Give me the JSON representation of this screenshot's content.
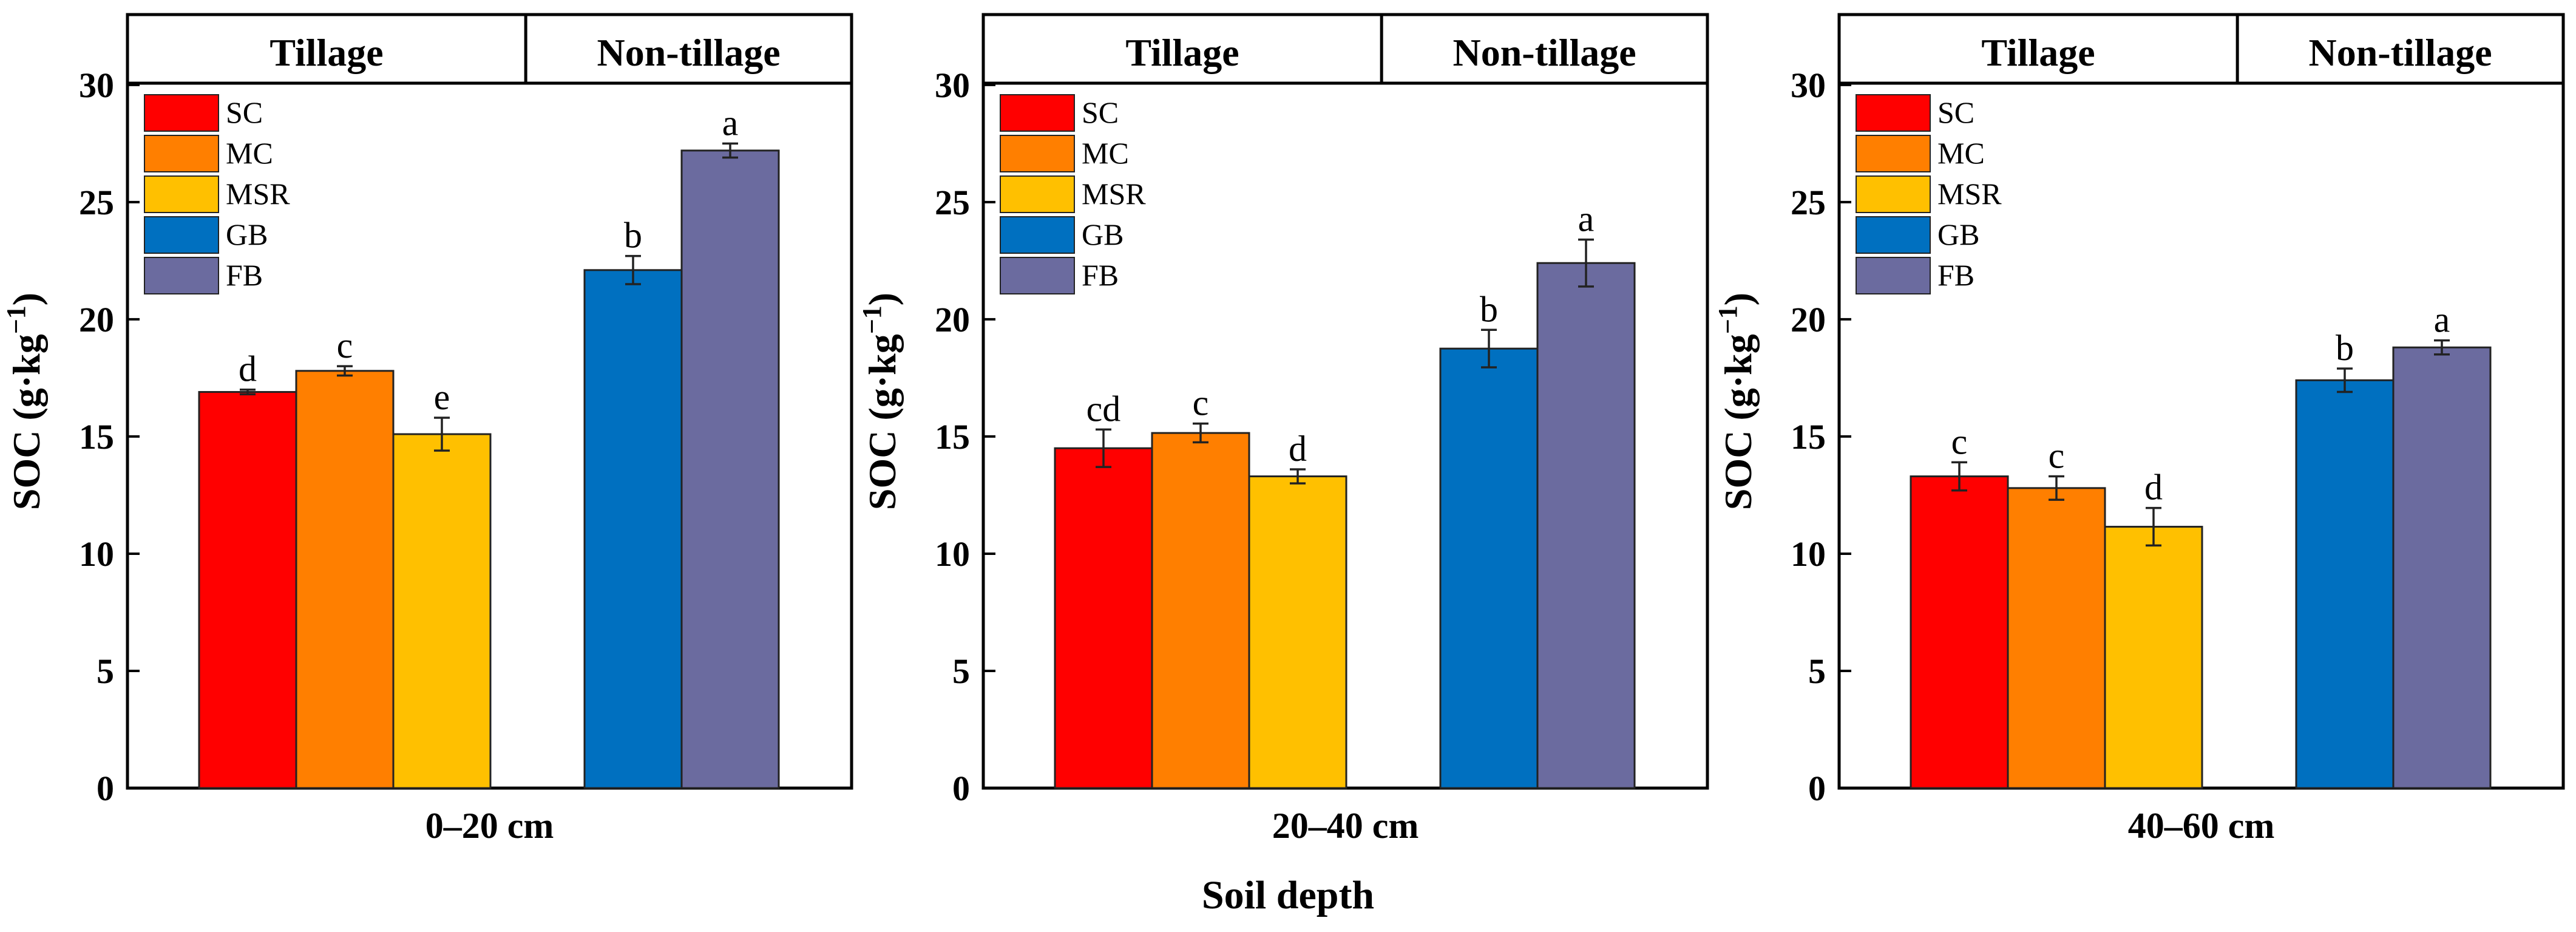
{
  "page": {
    "x_axis_title": "Soil depth"
  },
  "chart_data": [
    {
      "type": "bar",
      "panel_label": "0–20 cm",
      "ylabel": "SOC (g·kg",
      "ylabel_superscript": "−1",
      "ylabel_close": ")",
      "ylim": [
        0,
        33
      ],
      "yticks": [
        0,
        5,
        10,
        15,
        20,
        25,
        30
      ],
      "groups": [
        {
          "label": "Tillage",
          "series": [
            "SC",
            "MC",
            "MSR"
          ]
        },
        {
          "label": "Non-tillage",
          "series": [
            "GB",
            "FB"
          ]
        }
      ],
      "legend": {
        "position": "top-left",
        "entries": [
          "SC",
          "MC",
          "MSR",
          "GB",
          "FB"
        ]
      },
      "series": [
        {
          "name": "SC",
          "color": "#ff0000",
          "value": 16.9,
          "error": 0.1,
          "letter": "d"
        },
        {
          "name": "MC",
          "color": "#ff7f00",
          "value": 17.8,
          "error": 0.2,
          "letter": "c"
        },
        {
          "name": "MSR",
          "color": "#ffc000",
          "value": 15.1,
          "error": 0.7,
          "letter": "e"
        },
        {
          "name": "GB",
          "color": "#0070c0",
          "value": 22.1,
          "error": 0.6,
          "letter": "b"
        },
        {
          "name": "FB",
          "color": "#6b6b9f",
          "value": 27.2,
          "error": 0.3,
          "letter": "a"
        }
      ]
    },
    {
      "type": "bar",
      "panel_label": "20–40 cm",
      "ylabel": "SOC (g·kg",
      "ylabel_superscript": "−1",
      "ylabel_close": ")",
      "ylim": [
        0,
        33
      ],
      "yticks": [
        0,
        5,
        10,
        15,
        20,
        25,
        30
      ],
      "groups": [
        {
          "label": "Tillage",
          "series": [
            "SC",
            "MC",
            "MSR"
          ]
        },
        {
          "label": "Non-tillage",
          "series": [
            "GB",
            "FB"
          ]
        }
      ],
      "legend": {
        "position": "top-left",
        "entries": [
          "SC",
          "MC",
          "MSR",
          "GB",
          "FB"
        ]
      },
      "series": [
        {
          "name": "SC",
          "color": "#ff0000",
          "value": 14.5,
          "error": 0.8,
          "letter": "cd"
        },
        {
          "name": "MC",
          "color": "#ff7f00",
          "value": 15.15,
          "error": 0.4,
          "letter": "c"
        },
        {
          "name": "MSR",
          "color": "#ffc000",
          "value": 13.3,
          "error": 0.3,
          "letter": "d"
        },
        {
          "name": "GB",
          "color": "#0070c0",
          "value": 18.75,
          "error": 0.8,
          "letter": "b"
        },
        {
          "name": "FB",
          "color": "#6b6b9f",
          "value": 22.4,
          "error": 1.0,
          "letter": "a"
        }
      ]
    },
    {
      "type": "bar",
      "panel_label": "40–60 cm",
      "ylabel": "SOC (g·kg",
      "ylabel_superscript": "−1",
      "ylabel_close": ")",
      "ylim": [
        0,
        33
      ],
      "yticks": [
        0,
        5,
        10,
        15,
        20,
        25,
        30
      ],
      "groups": [
        {
          "label": "Tillage",
          "series": [
            "SC",
            "MC",
            "MSR"
          ]
        },
        {
          "label": "Non-tillage",
          "series": [
            "GB",
            "FB"
          ]
        }
      ],
      "legend": {
        "position": "top-left",
        "entries": [
          "SC",
          "MC",
          "MSR",
          "GB",
          "FB"
        ]
      },
      "series": [
        {
          "name": "SC",
          "color": "#ff0000",
          "value": 13.3,
          "error": 0.6,
          "letter": "c"
        },
        {
          "name": "MC",
          "color": "#ff7f00",
          "value": 12.8,
          "error": 0.5,
          "letter": "c"
        },
        {
          "name": "MSR",
          "color": "#ffc000",
          "value": 11.15,
          "error": 0.8,
          "letter": "d"
        },
        {
          "name": "GB",
          "color": "#0070c0",
          "value": 17.4,
          "error": 0.5,
          "letter": "b"
        },
        {
          "name": "FB",
          "color": "#6b6b9f",
          "value": 18.8,
          "error": 0.3,
          "letter": "a"
        }
      ]
    }
  ]
}
